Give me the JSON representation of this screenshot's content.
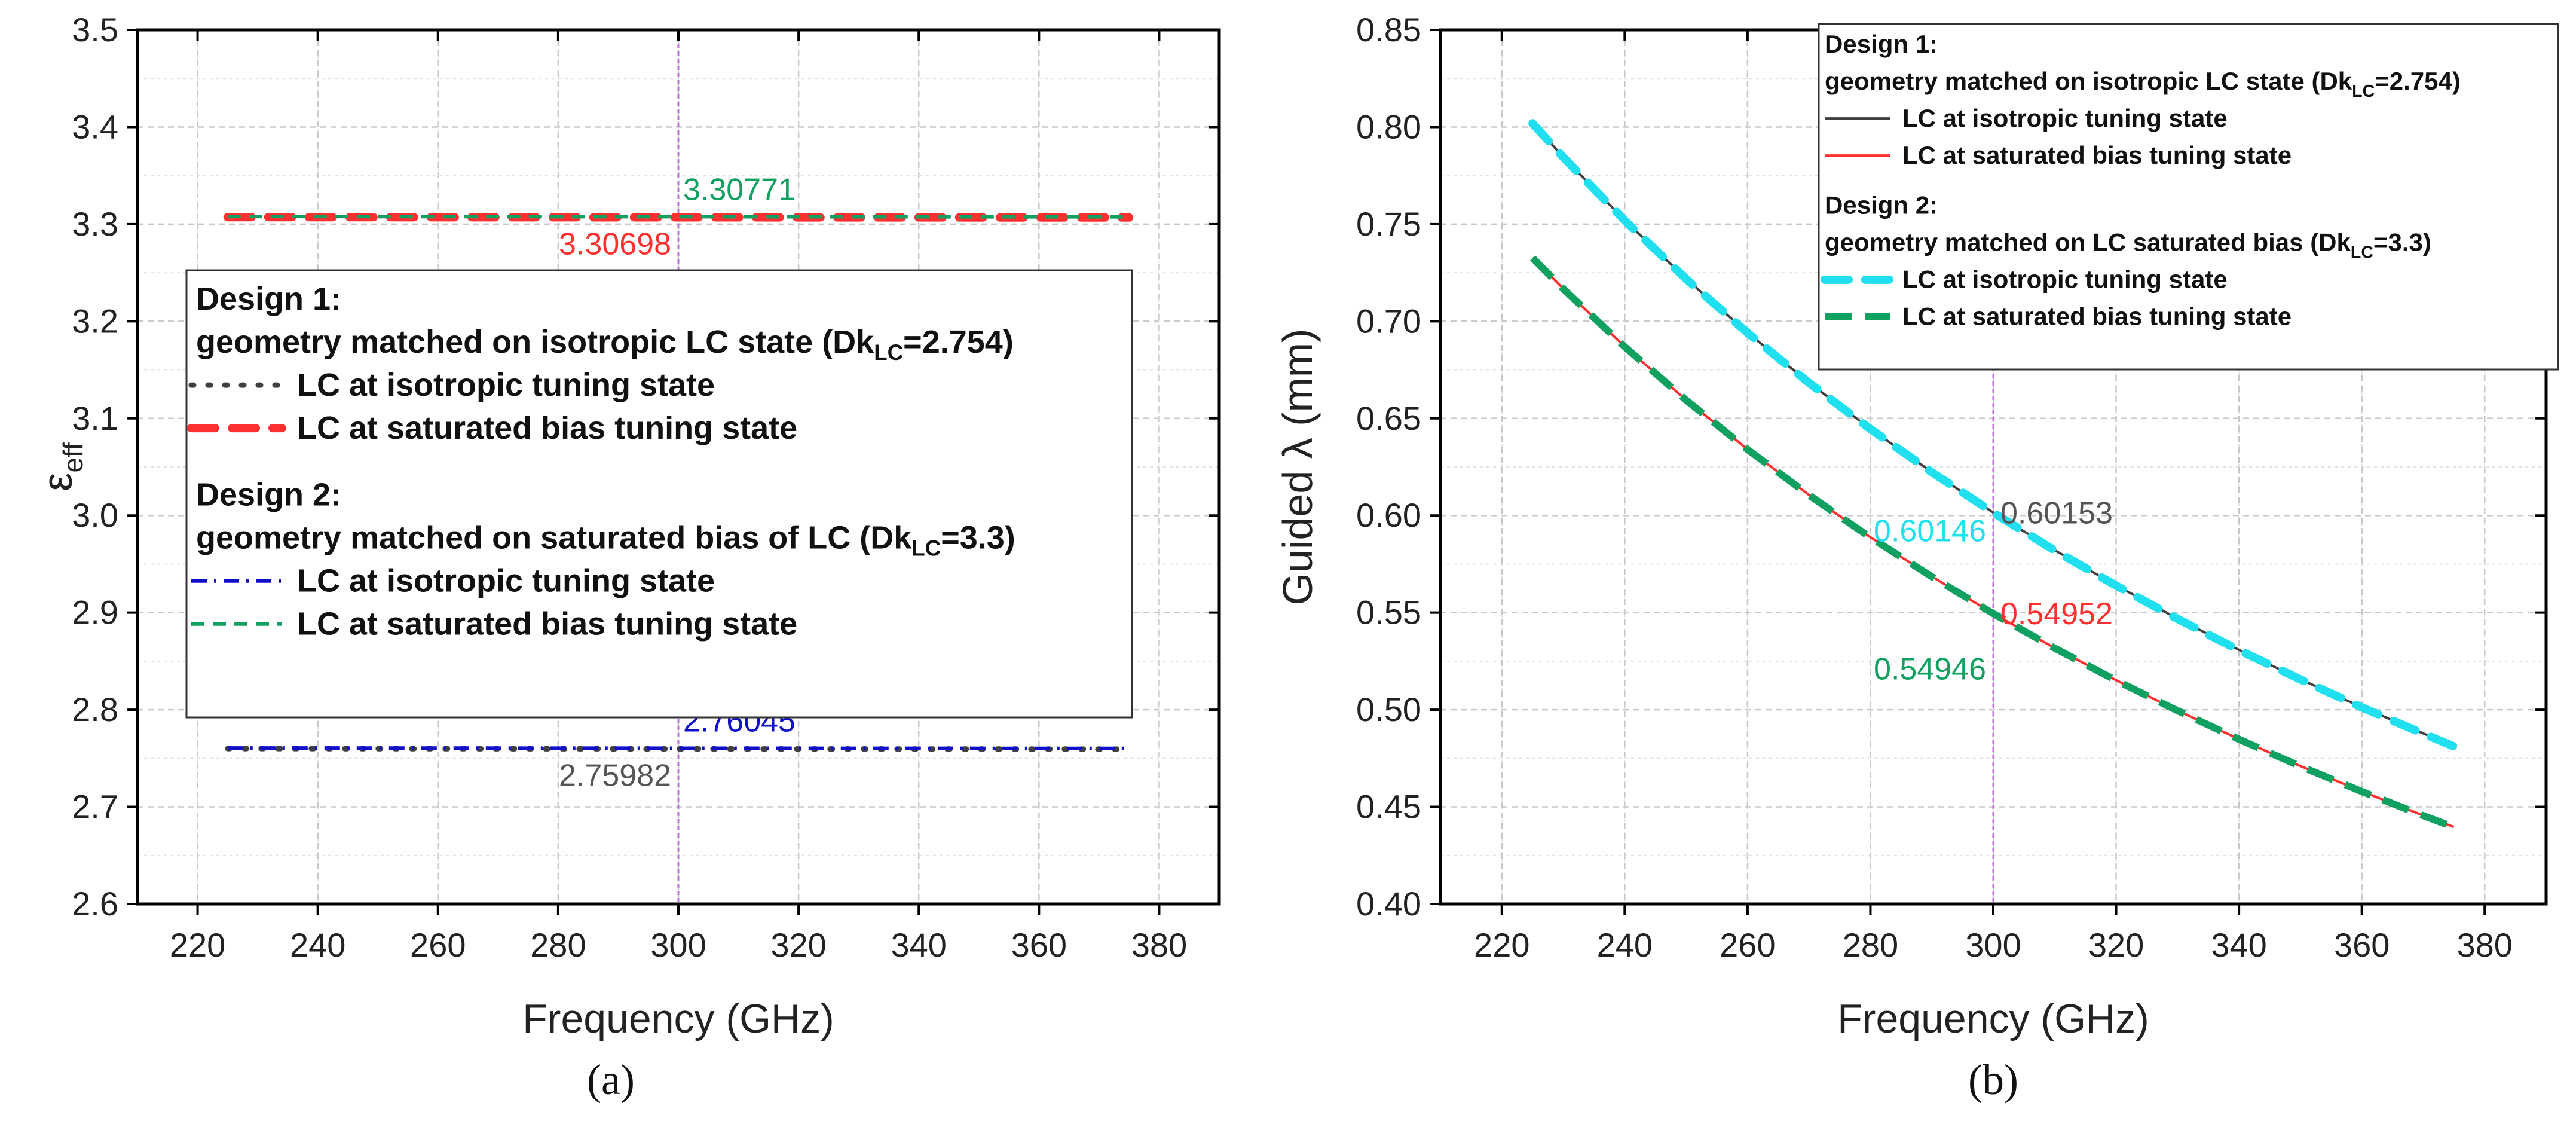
{
  "chart_data": [
    {
      "panel": "a",
      "type": "line",
      "panel_label": "(a)",
      "xlabel": "Frequency (GHz)",
      "ylabel_main": "ε",
      "ylabel_sub": "eff",
      "xlim": [
        210,
        390
      ],
      "ylim": [
        2.6,
        3.5
      ],
      "xticks": [
        220,
        240,
        260,
        280,
        300,
        320,
        340,
        360,
        380
      ],
      "yticks": [
        2.6,
        2.7,
        2.8,
        2.9,
        3.0,
        3.1,
        3.2,
        3.3,
        3.4,
        3.5
      ],
      "ytick_labels": [
        "2.6",
        "2.7",
        "2.8",
        "2.9",
        "3.0",
        "3.1",
        "3.2",
        "3.3",
        "3.4",
        "3.5"
      ],
      "grid": true,
      "marker_x": 300,
      "x": [
        225,
        375
      ],
      "series": [
        {
          "name": "Design 1 - LC at isotropic tuning state",
          "values": [
            2.76,
            2.7595
          ],
          "color": "#404040",
          "style": "dot"
        },
        {
          "name": "Design 1 - LC at saturated bias tuning state",
          "values": [
            3.3072,
            3.3068
          ],
          "color": "#ff3030",
          "style": "dash"
        },
        {
          "name": "Design 2 - LC at isotropic tuning state",
          "values": [
            2.7606,
            2.7602
          ],
          "color": "#1010cc",
          "style": "dashdot"
        },
        {
          "name": "Design 2 - LC at saturated bias tuning state",
          "values": [
            3.3079,
            3.3075
          ],
          "color": "#10a060",
          "style": "shortdash"
        }
      ],
      "annotations": [
        {
          "text": "3.30771",
          "x": 300,
          "y": 3.30771,
          "color": "#10a060",
          "pos": "above-right"
        },
        {
          "text": "3.30698",
          "x": 300,
          "y": 3.30698,
          "color": "#ff3030",
          "pos": "below-left"
        },
        {
          "text": "2.76045",
          "x": 300,
          "y": 2.76045,
          "color": "#1010cc",
          "pos": "above-right"
        },
        {
          "text": "2.75982",
          "x": 300,
          "y": 2.75982,
          "color": "#555555",
          "pos": "below-left"
        }
      ],
      "legend": {
        "placement": "center-left",
        "d1_title": "Design 1:",
        "d1_desc_pre": "geometry matched on isotropic LC state (Dk",
        "d1_desc_sub": "LC",
        "d1_desc_post": "=2.754)",
        "d1_item1": "LC at isotropic tuning state",
        "d1_item2": "LC at saturated bias tuning state",
        "d2_title": "Design 2:",
        "d2_desc_pre": "geometry matched on saturated bias of LC (Dk",
        "d2_desc_sub": "LC",
        "d2_desc_post": "=3.3)",
        "d2_item1": "LC at isotropic tuning state",
        "d2_item2": "LC at saturated bias tuning state"
      }
    },
    {
      "panel": "b",
      "type": "line",
      "panel_label": "(b)",
      "xlabel": "Frequency (GHz)",
      "ylabel": "Guided λ (mm)",
      "xlim": [
        210,
        390
      ],
      "ylim": [
        0.4,
        0.85
      ],
      "xticks": [
        220,
        240,
        260,
        280,
        300,
        320,
        340,
        360,
        380
      ],
      "yticks": [
        0.4,
        0.45,
        0.5,
        0.55,
        0.6,
        0.65,
        0.7,
        0.75,
        0.8,
        0.85
      ],
      "ytick_labels": [
        "0.40",
        "0.45",
        "0.50",
        "0.55",
        "0.60",
        "0.65",
        "0.70",
        "0.75",
        "0.80",
        "0.85"
      ],
      "grid": true,
      "marker_x": 300,
      "x": [
        225,
        230,
        240,
        250,
        260,
        270,
        280,
        290,
        300,
        310,
        320,
        330,
        340,
        350,
        360,
        370,
        375
      ],
      "series": [
        {
          "name": "Design 1 - LC at isotropic tuning state",
          "color": "#404040",
          "style": "solid",
          "values": [
            0.802,
            0.7845,
            0.752,
            0.7219,
            0.6941,
            0.6684,
            0.6446,
            0.6224,
            0.6015,
            0.5821,
            0.564,
            0.5469,
            0.5308,
            0.5157,
            0.5013,
            0.4878,
            0.4812
          ]
        },
        {
          "name": "Design 1 - LC at saturated bias tuning state",
          "color": "#ff3030",
          "style": "solid",
          "values": [
            0.7327,
            0.7168,
            0.687,
            0.6595,
            0.6341,
            0.6106,
            0.5888,
            0.5686,
            0.5495,
            0.5318,
            0.5152,
            0.4996,
            0.4849,
            0.471,
            0.458,
            0.4456,
            0.4396
          ]
        },
        {
          "name": "Design 2 - LC at isotropic tuning state",
          "color": "#20e0f0",
          "style": "dash",
          "values": [
            0.8019,
            0.7844,
            0.7519,
            0.7218,
            0.694,
            0.6683,
            0.6445,
            0.6223,
            0.60146,
            0.582,
            0.5639,
            0.5468,
            0.5307,
            0.5156,
            0.5012,
            0.4877,
            0.4811
          ]
        },
        {
          "name": "Design 2 - LC at saturated bias tuning state",
          "color": "#10a060",
          "style": "thickdash",
          "values": [
            0.7326,
            0.7167,
            0.6869,
            0.6594,
            0.634,
            0.6105,
            0.5887,
            0.5685,
            0.54946,
            0.5317,
            0.5151,
            0.4995,
            0.4848,
            0.4709,
            0.4579,
            0.4455,
            0.4395
          ]
        }
      ],
      "annotations": [
        {
          "text": "0.60153",
          "x": 300,
          "y": 0.60153,
          "color": "#555555",
          "pos": "right"
        },
        {
          "text": "0.60146",
          "x": 300,
          "y": 0.60146,
          "color": "#20e0f0",
          "pos": "left"
        },
        {
          "text": "0.54952",
          "x": 300,
          "y": 0.54952,
          "color": "#ff3030",
          "pos": "right"
        },
        {
          "text": "0.54946",
          "x": 300,
          "y": 0.54946,
          "color": "#10a060",
          "pos": "below-left"
        }
      ],
      "legend": {
        "placement": "top-right",
        "d1_title": "Design 1:",
        "d1_desc_pre": "geometry matched on isotropic LC state (Dk",
        "d1_desc_sub": "LC",
        "d1_desc_post": "=2.754)",
        "d1_item1": "LC at isotropic tuning state",
        "d1_item2": "LC at saturated bias tuning state",
        "d2_title": "Design 2:",
        "d2_desc_pre": "geometry matched on LC saturated bias (Dk",
        "d2_desc_sub": "LC",
        "d2_desc_post": "=3.3)",
        "d2_item1": "LC at isotropic tuning state",
        "d2_item2": "LC at saturated bias tuning state"
      }
    }
  ]
}
